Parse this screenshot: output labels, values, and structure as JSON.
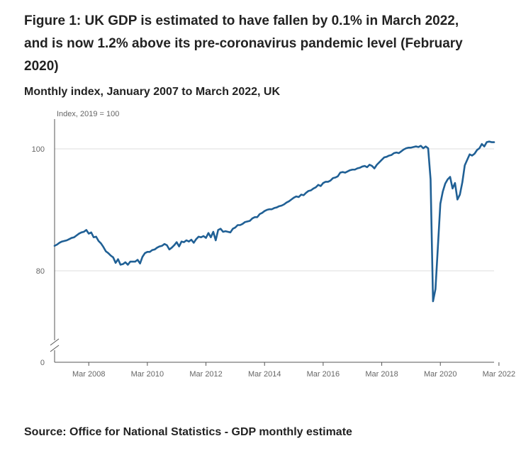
{
  "figure": {
    "title": "Figure 1: UK GDP is estimated to have fallen by 0.1% in March 2022, and is now 1.2% above its pre-coronavirus pandemic level (February 2020)",
    "subtitle": "Monthly index, January 2007 to March 2022, UK",
    "source": "Source: Office for National Statistics - GDP monthly estimate"
  },
  "colors": {
    "line": "#206095",
    "grid": "#dddddd",
    "axis": "#555555",
    "text": "#222222",
    "tick_text": "#666666"
  },
  "chart_data": {
    "type": "line",
    "title": "Figure 1: UK GDP is estimated to have fallen by 0.1% in March 2022, and is now 1.2% above its pre-coronavirus pandemic level (February 2020)",
    "subtitle": "Monthly index, January 2007 to March 2022, UK",
    "ylabel": "Index, 2019 = 100",
    "xlabel": "",
    "y_axis_break": true,
    "y_ticks": [
      0,
      80,
      100
    ],
    "y_tick_labels": [
      "0",
      "80",
      "100"
    ],
    "x_ticks": [
      "Mar 2008",
      "Mar 2010",
      "Mar 2012",
      "Mar 2014",
      "Mar 2016",
      "Mar 2018",
      "Mar 2020",
      "Mar 2022"
    ],
    "x_start": "Jan 2007",
    "x_end": "Mar 2022",
    "grid": true,
    "series": [
      {
        "name": "Monthly GDP index",
        "start": "2007-01",
        "frequency": "monthly",
        "values": [
          84.1,
          84.3,
          84.6,
          84.8,
          84.9,
          85.0,
          85.2,
          85.4,
          85.5,
          85.8,
          86.1,
          86.3,
          86.4,
          86.7,
          86.1,
          86.3,
          85.5,
          85.6,
          84.9,
          84.5,
          83.9,
          83.2,
          82.9,
          82.5,
          82.2,
          81.3,
          81.9,
          81.0,
          81.1,
          81.4,
          81.0,
          81.5,
          81.5,
          81.5,
          81.8,
          81.2,
          82.3,
          82.9,
          83.1,
          83.1,
          83.4,
          83.5,
          83.8,
          84.0,
          84.1,
          84.4,
          84.2,
          83.5,
          83.8,
          84.2,
          84.7,
          84.0,
          84.8,
          84.7,
          85.0,
          84.8,
          85.1,
          84.6,
          85.2,
          85.6,
          85.5,
          85.7,
          85.4,
          86.2,
          85.5,
          86.4,
          85.0,
          86.7,
          86.9,
          86.4,
          86.5,
          86.4,
          86.3,
          86.9,
          87.1,
          87.5,
          87.5,
          87.7,
          88.0,
          88.1,
          88.2,
          88.6,
          88.8,
          88.8,
          89.3,
          89.5,
          89.8,
          90.0,
          90.1,
          90.1,
          90.3,
          90.4,
          90.6,
          90.7,
          90.9,
          91.2,
          91.4,
          91.7,
          92.0,
          92.2,
          92.1,
          92.5,
          92.4,
          92.8,
          93.1,
          93.2,
          93.5,
          93.7,
          94.1,
          93.9,
          94.4,
          94.6,
          94.6,
          94.8,
          95.2,
          95.3,
          95.5,
          96.1,
          96.2,
          96.1,
          96.3,
          96.5,
          96.6,
          96.6,
          96.8,
          96.9,
          97.1,
          97.2,
          97.0,
          97.4,
          97.2,
          96.8,
          97.4,
          97.8,
          98.2,
          98.6,
          98.7,
          98.9,
          99.0,
          99.3,
          99.4,
          99.3,
          99.6,
          99.9,
          100.1,
          100.2,
          100.2,
          100.3,
          100.4,
          100.3,
          100.5,
          100.1,
          100.4,
          100.1,
          95.0,
          75.0,
          77.0,
          84.0,
          91.0,
          93.0,
          94.3,
          95.0,
          95.4,
          93.5,
          94.4,
          91.7,
          92.5,
          94.5,
          97.3,
          98.2,
          99.1,
          98.9,
          99.2,
          99.8,
          100.1,
          100.8,
          100.4,
          101.1,
          101.2,
          101.1,
          101.1
        ]
      }
    ]
  }
}
